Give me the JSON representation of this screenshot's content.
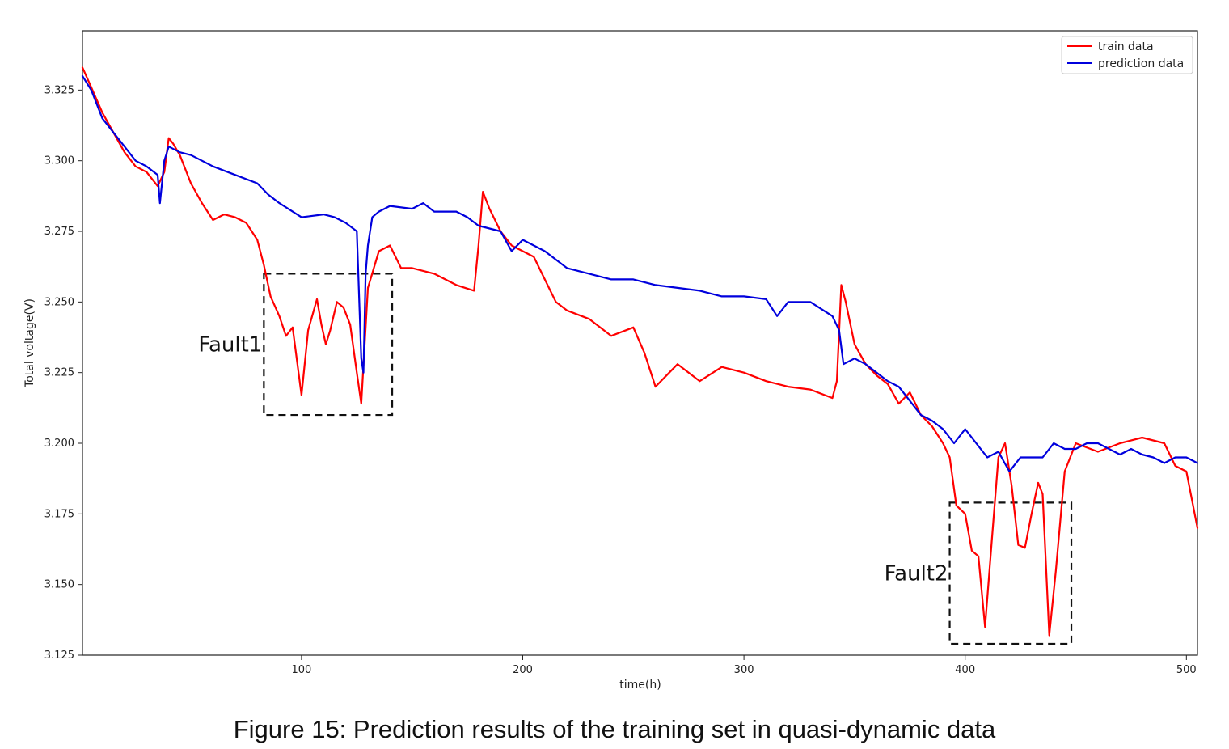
{
  "caption": "Figure 15: Prediction results of the training set in quasi-dynamic data",
  "chart_data": {
    "type": "line",
    "title": "",
    "xlabel": "time(h)",
    "ylabel": "Total voltage(V)",
    "xlim": [
      1,
      505
    ],
    "ylim": [
      3.125,
      3.346
    ],
    "xticks": [
      100,
      200,
      300,
      400,
      500
    ],
    "yticks": [
      3.125,
      3.15,
      3.175,
      3.2,
      3.225,
      3.25,
      3.275,
      3.3,
      3.325
    ],
    "ytick_labels": [
      "3.125",
      "3.150",
      "3.175",
      "3.200",
      "3.225",
      "3.250",
      "3.275",
      "3.300",
      "3.325"
    ],
    "grid": false,
    "legend_position": "top-right",
    "series": [
      {
        "name": "train data",
        "color": "#ff0000",
        "x": [
          1,
          5,
          10,
          15,
          20,
          25,
          30,
          35,
          38,
          40,
          42,
          45,
          50,
          55,
          60,
          65,
          70,
          75,
          80,
          83,
          86,
          90,
          93,
          96,
          100,
          103,
          107,
          109,
          111,
          113,
          116,
          119,
          122,
          125,
          127,
          130,
          135,
          140,
          145,
          150,
          160,
          170,
          178,
          180,
          182,
          185,
          190,
          195,
          200,
          205,
          210,
          215,
          220,
          230,
          240,
          250,
          255,
          260,
          265,
          270,
          280,
          290,
          300,
          310,
          320,
          330,
          340,
          342,
          344,
          346,
          350,
          355,
          360,
          365,
          370,
          375,
          380,
          385,
          390,
          393,
          396,
          400,
          403,
          406,
          409,
          412,
          415,
          418,
          421,
          424,
          427,
          430,
          433,
          435,
          438,
          441,
          445,
          450,
          460,
          470,
          480,
          490,
          495,
          500,
          505
        ],
        "values": [
          3.333,
          3.326,
          3.317,
          3.31,
          3.303,
          3.298,
          3.296,
          3.291,
          3.296,
          3.308,
          3.306,
          3.302,
          3.292,
          3.285,
          3.279,
          3.281,
          3.28,
          3.278,
          3.272,
          3.263,
          3.252,
          3.245,
          3.238,
          3.241,
          3.217,
          3.24,
          3.251,
          3.242,
          3.235,
          3.24,
          3.25,
          3.248,
          3.242,
          3.225,
          3.214,
          3.255,
          3.268,
          3.27,
          3.262,
          3.262,
          3.26,
          3.256,
          3.254,
          3.27,
          3.289,
          3.283,
          3.275,
          3.27,
          3.268,
          3.266,
          3.258,
          3.25,
          3.247,
          3.244,
          3.238,
          3.241,
          3.232,
          3.22,
          3.224,
          3.228,
          3.222,
          3.227,
          3.225,
          3.222,
          3.22,
          3.219,
          3.216,
          3.222,
          3.256,
          3.25,
          3.235,
          3.228,
          3.224,
          3.221,
          3.214,
          3.218,
          3.21,
          3.206,
          3.2,
          3.195,
          3.178,
          3.175,
          3.162,
          3.16,
          3.135,
          3.165,
          3.195,
          3.2,
          3.185,
          3.164,
          3.163,
          3.175,
          3.186,
          3.182,
          3.132,
          3.155,
          3.19,
          3.2,
          3.197,
          3.2,
          3.202,
          3.2,
          3.192,
          3.19,
          3.17
        ]
      },
      {
        "name": "prediction data",
        "color": "#0000dd",
        "x": [
          1,
          5,
          10,
          15,
          20,
          25,
          30,
          35,
          36,
          38,
          40,
          45,
          50,
          55,
          60,
          70,
          80,
          85,
          90,
          100,
          110,
          115,
          120,
          125,
          127,
          128,
          129,
          130,
          132,
          135,
          140,
          150,
          155,
          160,
          170,
          175,
          180,
          190,
          195,
          200,
          205,
          210,
          220,
          230,
          240,
          250,
          260,
          270,
          280,
          290,
          300,
          310,
          315,
          320,
          330,
          340,
          343,
          345,
          350,
          355,
          360,
          365,
          370,
          375,
          380,
          385,
          390,
          395,
          400,
          405,
          410,
          415,
          420,
          425,
          430,
          435,
          440,
          445,
          450,
          455,
          460,
          465,
          470,
          475,
          480,
          485,
          490,
          495,
          500,
          505
        ],
        "values": [
          3.33,
          3.325,
          3.315,
          3.31,
          3.305,
          3.3,
          3.298,
          3.295,
          3.285,
          3.3,
          3.305,
          3.303,
          3.302,
          3.3,
          3.298,
          3.295,
          3.292,
          3.288,
          3.285,
          3.28,
          3.281,
          3.28,
          3.278,
          3.275,
          3.23,
          3.225,
          3.26,
          3.27,
          3.28,
          3.282,
          3.284,
          3.283,
          3.285,
          3.282,
          3.282,
          3.28,
          3.277,
          3.275,
          3.268,
          3.272,
          3.27,
          3.268,
          3.262,
          3.26,
          3.258,
          3.258,
          3.256,
          3.255,
          3.254,
          3.252,
          3.252,
          3.251,
          3.245,
          3.25,
          3.25,
          3.245,
          3.24,
          3.228,
          3.23,
          3.228,
          3.225,
          3.222,
          3.22,
          3.215,
          3.21,
          3.208,
          3.205,
          3.2,
          3.205,
          3.2,
          3.195,
          3.197,
          3.19,
          3.195,
          3.195,
          3.195,
          3.2,
          3.198,
          3.198,
          3.2,
          3.2,
          3.198,
          3.196,
          3.198,
          3.196,
          3.195,
          3.193,
          3.195,
          3.195,
          3.193
        ]
      }
    ],
    "annotations": [
      {
        "text": "Fault1",
        "x_range": [
          83,
          141
        ],
        "y_range": [
          3.21,
          3.26
        ]
      },
      {
        "text": "Fault2",
        "x_range": [
          393,
          448
        ],
        "y_range": [
          3.129,
          3.179
        ]
      }
    ]
  }
}
